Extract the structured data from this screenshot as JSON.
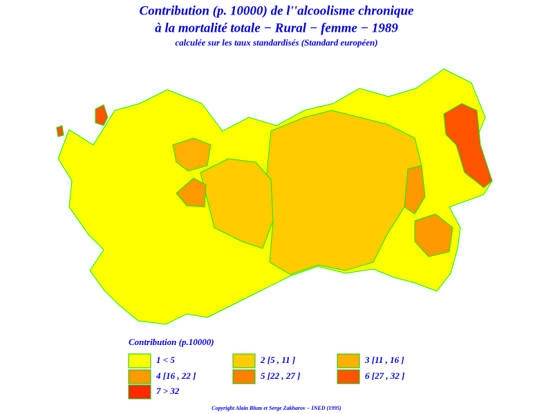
{
  "header": {
    "title_line1": "Contribution (p. 10000) de l''alcoolisme chronique",
    "title_line2": "à la mortalité totale − Rural − femme − 1989",
    "subtitle": "calculée sur les taux standardisés (Standard européen)"
  },
  "legend": {
    "title": "Contribution  (p.10000)",
    "items": [
      {
        "label": "1  <  5",
        "color": "#ffff00"
      },
      {
        "label": "2  [5 ,  11 ]",
        "color": "#ffcc00"
      },
      {
        "label": "3  [11 ,  16 ]",
        "color": "#ffb000"
      },
      {
        "label": "4  [16 ,  22 ]",
        "color": "#ff9900"
      },
      {
        "label": "5  [22 ,  27 ]",
        "color": "#ff8000"
      },
      {
        "label": "6  [27 ,  32 ]",
        "color": "#ff5500"
      },
      {
        "label": "7  >  32",
        "color": "#ff2a00"
      }
    ]
  },
  "footer": {
    "copyright": "Copyright  Alain  Blum  et  Serge  Zakharov  −  INED  (1995)"
  }
}
